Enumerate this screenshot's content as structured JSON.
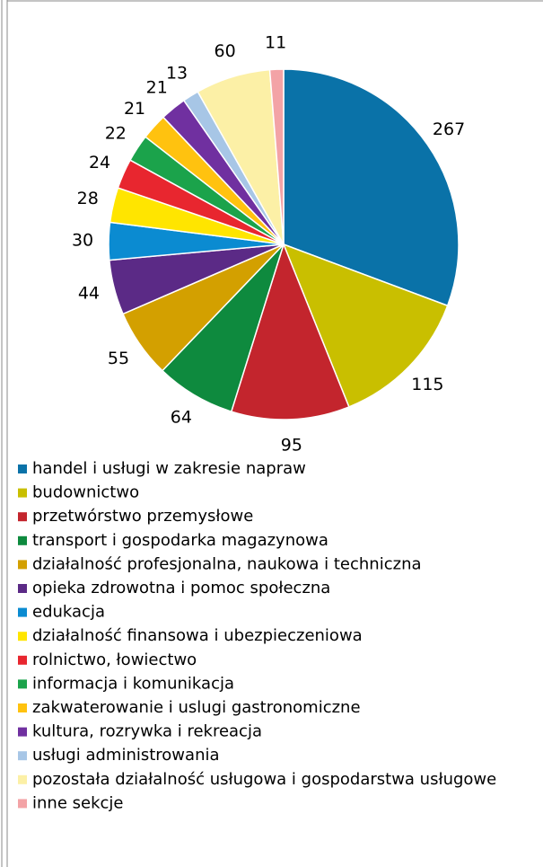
{
  "chart_data": {
    "type": "pie",
    "categories": [
      "handel i usługi w zakresie napraw",
      "budownictwo",
      "przetwórstwo przemysłowe",
      "transport i gospodarka magazynowa",
      "działalność profesjonalna, naukowa i techniczna",
      "opieka zdrowotna i pomoc społeczna",
      "edukacja",
      "działalność finansowa i ubezpieczeniowa",
      "rolnictwo, łowiectwo",
      "informacja i komunikacja",
      "zakwaterowanie i uslugi gastronomiczne",
      "kultura, rozrywka i rekreacja",
      "usługi administrowania",
      "pozostała działalność usługowa i gospodarstwa usługowe",
      "inne sekcje"
    ],
    "values": [
      267,
      115,
      95,
      64,
      55,
      44,
      30,
      28,
      24,
      22,
      21,
      21,
      13,
      60,
      11
    ],
    "colors": [
      "#0a72a8",
      "#c9bf00",
      "#c3252d",
      "#0e8a3e",
      "#d3a000",
      "#5b2a86",
      "#0b8bd1",
      "#ffe500",
      "#e8262f",
      "#1ba34b",
      "#ffc20f",
      "#7030a0",
      "#a7c6e6",
      "#fcf0a6",
      "#f3a3a6"
    ],
    "legend": "bottom"
  }
}
